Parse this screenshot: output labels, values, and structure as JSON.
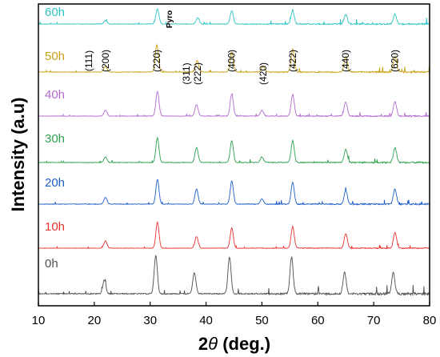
{
  "chart_data": {
    "type": "line",
    "xlabel_prefix": "2",
    "xlabel_symbol": "θ",
    "xlabel_suffix": " (deg.)",
    "ylabel": "Intensity (a.u)",
    "xlim": [
      10,
      80
    ],
    "x_ticks": [
      "10",
      "20",
      "30",
      "40",
      "50",
      "60",
      "70",
      "80"
    ],
    "grid": false,
    "peaks": [
      {
        "label": "(111)",
        "x": 19.0
      },
      {
        "label": "(200)",
        "x": 22.0
      },
      {
        "label": "(220)",
        "x": 31.2
      },
      {
        "label": "(311)",
        "x": 36.5
      },
      {
        "label": "(222)",
        "x": 38.5
      },
      {
        "label": "(400)",
        "x": 44.6
      },
      {
        "label": "(420)",
        "x": 50.2
      },
      {
        "label": "(422)",
        "x": 55.5
      },
      {
        "label": "(440)",
        "x": 65.0
      },
      {
        "label": "(620)",
        "x": 73.8
      }
    ],
    "secondary_label": {
      "text": "Pyro",
      "x": 33.5
    },
    "series": [
      {
        "name": "0h",
        "color": "#4d4d4d",
        "noise": 1.0,
        "peaks": [
          {
            "x": 21.8,
            "h": 0.35
          },
          {
            "x": 31.0,
            "h": 1.0
          },
          {
            "x": 37.9,
            "h": 0.55
          },
          {
            "x": 44.2,
            "h": 0.95
          },
          {
            "x": 55.3,
            "h": 0.95
          },
          {
            "x": 64.8,
            "h": 0.55
          },
          {
            "x": 73.5,
            "h": 0.55
          }
        ]
      },
      {
        "name": "10h",
        "color": "#e8332e",
        "noise": 0.4,
        "peaks": [
          {
            "x": 22.0,
            "h": 0.25
          },
          {
            "x": 31.3,
            "h": 0.9
          },
          {
            "x": 38.3,
            "h": 0.4
          },
          {
            "x": 44.6,
            "h": 0.7
          },
          {
            "x": 55.5,
            "h": 0.75
          },
          {
            "x": 65.0,
            "h": 0.5
          },
          {
            "x": 73.8,
            "h": 0.55
          }
        ]
      },
      {
        "name": "20h",
        "color": "#1f5fc8",
        "noise": 0.6,
        "peaks": [
          {
            "x": 22.0,
            "h": 0.25
          },
          {
            "x": 31.3,
            "h": 0.9
          },
          {
            "x": 38.3,
            "h": 0.55
          },
          {
            "x": 44.6,
            "h": 0.85
          },
          {
            "x": 50.0,
            "h": 0.2
          },
          {
            "x": 55.5,
            "h": 0.8
          },
          {
            "x": 65.0,
            "h": 0.5
          },
          {
            "x": 73.8,
            "h": 0.55
          }
        ]
      },
      {
        "name": "30h",
        "color": "#2ea050",
        "noise": 0.6,
        "peaks": [
          {
            "x": 22.0,
            "h": 0.2
          },
          {
            "x": 31.3,
            "h": 0.9
          },
          {
            "x": 38.3,
            "h": 0.55
          },
          {
            "x": 44.6,
            "h": 0.8
          },
          {
            "x": 50.0,
            "h": 0.2
          },
          {
            "x": 55.5,
            "h": 0.8
          },
          {
            "x": 65.0,
            "h": 0.5
          },
          {
            "x": 73.8,
            "h": 0.55
          }
        ]
      },
      {
        "name": "40h",
        "color": "#b36ad0",
        "noise": 0.5,
        "peaks": [
          {
            "x": 22.0,
            "h": 0.2
          },
          {
            "x": 31.3,
            "h": 0.85
          },
          {
            "x": 38.3,
            "h": 0.4
          },
          {
            "x": 44.6,
            "h": 0.75
          },
          {
            "x": 50.0,
            "h": 0.2
          },
          {
            "x": 55.5,
            "h": 0.75
          },
          {
            "x": 65.0,
            "h": 0.5
          },
          {
            "x": 73.8,
            "h": 0.5
          }
        ]
      },
      {
        "name": "50h",
        "color": "#c9a012",
        "noise": 0.6,
        "peaks": [
          {
            "x": 22.0,
            "h": 0.2
          },
          {
            "x": 31.2,
            "h": 0.95
          },
          {
            "x": 38.4,
            "h": 0.4
          },
          {
            "x": 44.6,
            "h": 0.7
          },
          {
            "x": 50.2,
            "h": 0.2
          },
          {
            "x": 55.5,
            "h": 0.8
          },
          {
            "x": 65.0,
            "h": 0.55
          },
          {
            "x": 73.8,
            "h": 0.55
          }
        ]
      },
      {
        "name": "60h",
        "color": "#2ec4c4",
        "noise": 0.6,
        "peaks": [
          {
            "x": 22.0,
            "h": 0.2
          },
          {
            "x": 31.3,
            "h": 0.85
          },
          {
            "x": 38.5,
            "h": 0.35
          },
          {
            "x": 44.6,
            "h": 0.75
          },
          {
            "x": 55.5,
            "h": 0.75
          },
          {
            "x": 65.0,
            "h": 0.55
          },
          {
            "x": 73.8,
            "h": 0.55
          }
        ]
      }
    ]
  }
}
